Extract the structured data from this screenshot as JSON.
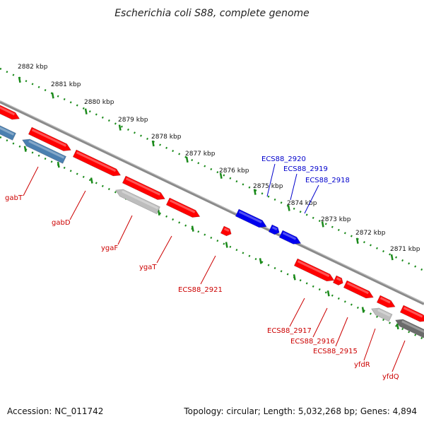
{
  "header": {
    "title": "Escherichia coli S88, complete genome"
  },
  "footer": {
    "accession": "Accession: NC_011742",
    "topology": "Topology: circular; Length: 5,032,268 bp; Genes: 4,894"
  },
  "colors": {
    "forward_gene": "#ff0000",
    "selected_gene": "#0000ee",
    "reverse_gene": "#4a7fb0",
    "pseudo_gene": "#bdbdbd",
    "dark_gene": "#6b6b6b",
    "backbone": "#888888",
    "ruler_dots": "#1a8a1a",
    "label_red": "#cc0000",
    "label_blue": "#0000cc"
  },
  "ruler_ticks": [
    {
      "label": "2882 kbp"
    },
    {
      "label": "2881 kbp"
    },
    {
      "label": "2880 kbp"
    },
    {
      "label": "2879 kbp"
    },
    {
      "label": "2878 kbp"
    },
    {
      "label": "2877 kbp"
    },
    {
      "label": "2876 kbp"
    },
    {
      "label": "2875 kbp"
    },
    {
      "label": "2874 kbp"
    },
    {
      "label": "2873 kbp"
    },
    {
      "label": "2872 kbp"
    },
    {
      "label": "2871 kbp"
    }
  ],
  "gene_labels_top": [
    {
      "label": "ECS88_2920"
    },
    {
      "label": "ECS88_2919"
    },
    {
      "label": "ECS88_2918"
    }
  ],
  "gene_labels_bottom": [
    {
      "label": "gabT"
    },
    {
      "label": "gabD"
    },
    {
      "label": "ygaF"
    },
    {
      "label": "ygaT"
    },
    {
      "label": "ECS88_2921"
    },
    {
      "label": "ECS88_2917"
    },
    {
      "label": "ECS88_2916"
    },
    {
      "label": "ECS88_2915"
    },
    {
      "label": "yfdR"
    },
    {
      "label": "yfdQ"
    }
  ]
}
